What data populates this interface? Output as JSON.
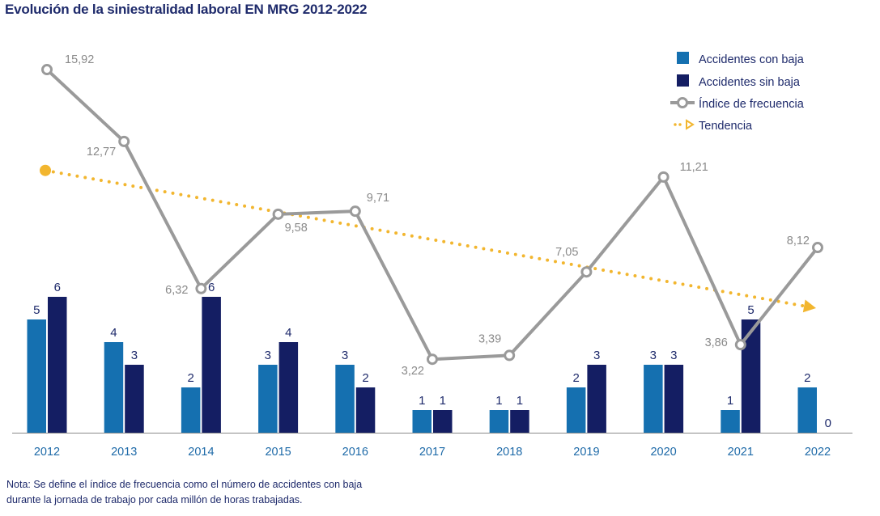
{
  "title": "Evolución de la siniestralidad laboral EN MRG 2012-2022",
  "note_lines": [
    "Nota: Se define el índice de frecuencia como el número de accidentes con baja",
    "durante la jornada de trabajo por cada millón de horas trabajadas."
  ],
  "colors": {
    "con_baja": "#1570b0",
    "sin_baja": "#141e63",
    "indice": "#9a9a9a",
    "tendencia": "#f2b62f"
  },
  "chart_data": {
    "type": "bar+line",
    "title": "Evolución de la siniestralidad laboral EN MRG 2012-2022",
    "categories": [
      "2012",
      "2013",
      "2014",
      "2015",
      "2016",
      "2017",
      "2018",
      "2019",
      "2020",
      "2021",
      "2022"
    ],
    "series": [
      {
        "name": "Accidentes con baja",
        "type": "bar",
        "values": [
          5,
          4,
          2,
          3,
          3,
          1,
          1,
          2,
          3,
          1,
          2
        ]
      },
      {
        "name": "Accidentes sin baja",
        "type": "bar",
        "values": [
          6,
          3,
          6,
          4,
          2,
          1,
          1,
          3,
          3,
          5,
          0
        ]
      },
      {
        "name": "Índice de frecuencia",
        "type": "line",
        "values": [
          15.92,
          12.77,
          6.32,
          9.58,
          9.71,
          3.22,
          3.39,
          7.05,
          11.21,
          3.86,
          8.12
        ],
        "labels": [
          "15,92",
          "12,77",
          "6,32",
          "9,58",
          "9,71",
          "3,22",
          "3,39",
          "7,05",
          "11,21",
          "3,86",
          "8,12"
        ]
      },
      {
        "name": "Tendencia",
        "type": "trendline",
        "start": 11.5,
        "end": 5.5
      }
    ],
    "bar_ylim": [
      0,
      6.5
    ],
    "line_ylim": [
      0,
      20
    ],
    "legend": [
      "Accidentes con baja",
      "Accidentes sin baja",
      "Índice de frecuencia",
      "Tendencia"
    ],
    "legend_position": "top-right"
  }
}
